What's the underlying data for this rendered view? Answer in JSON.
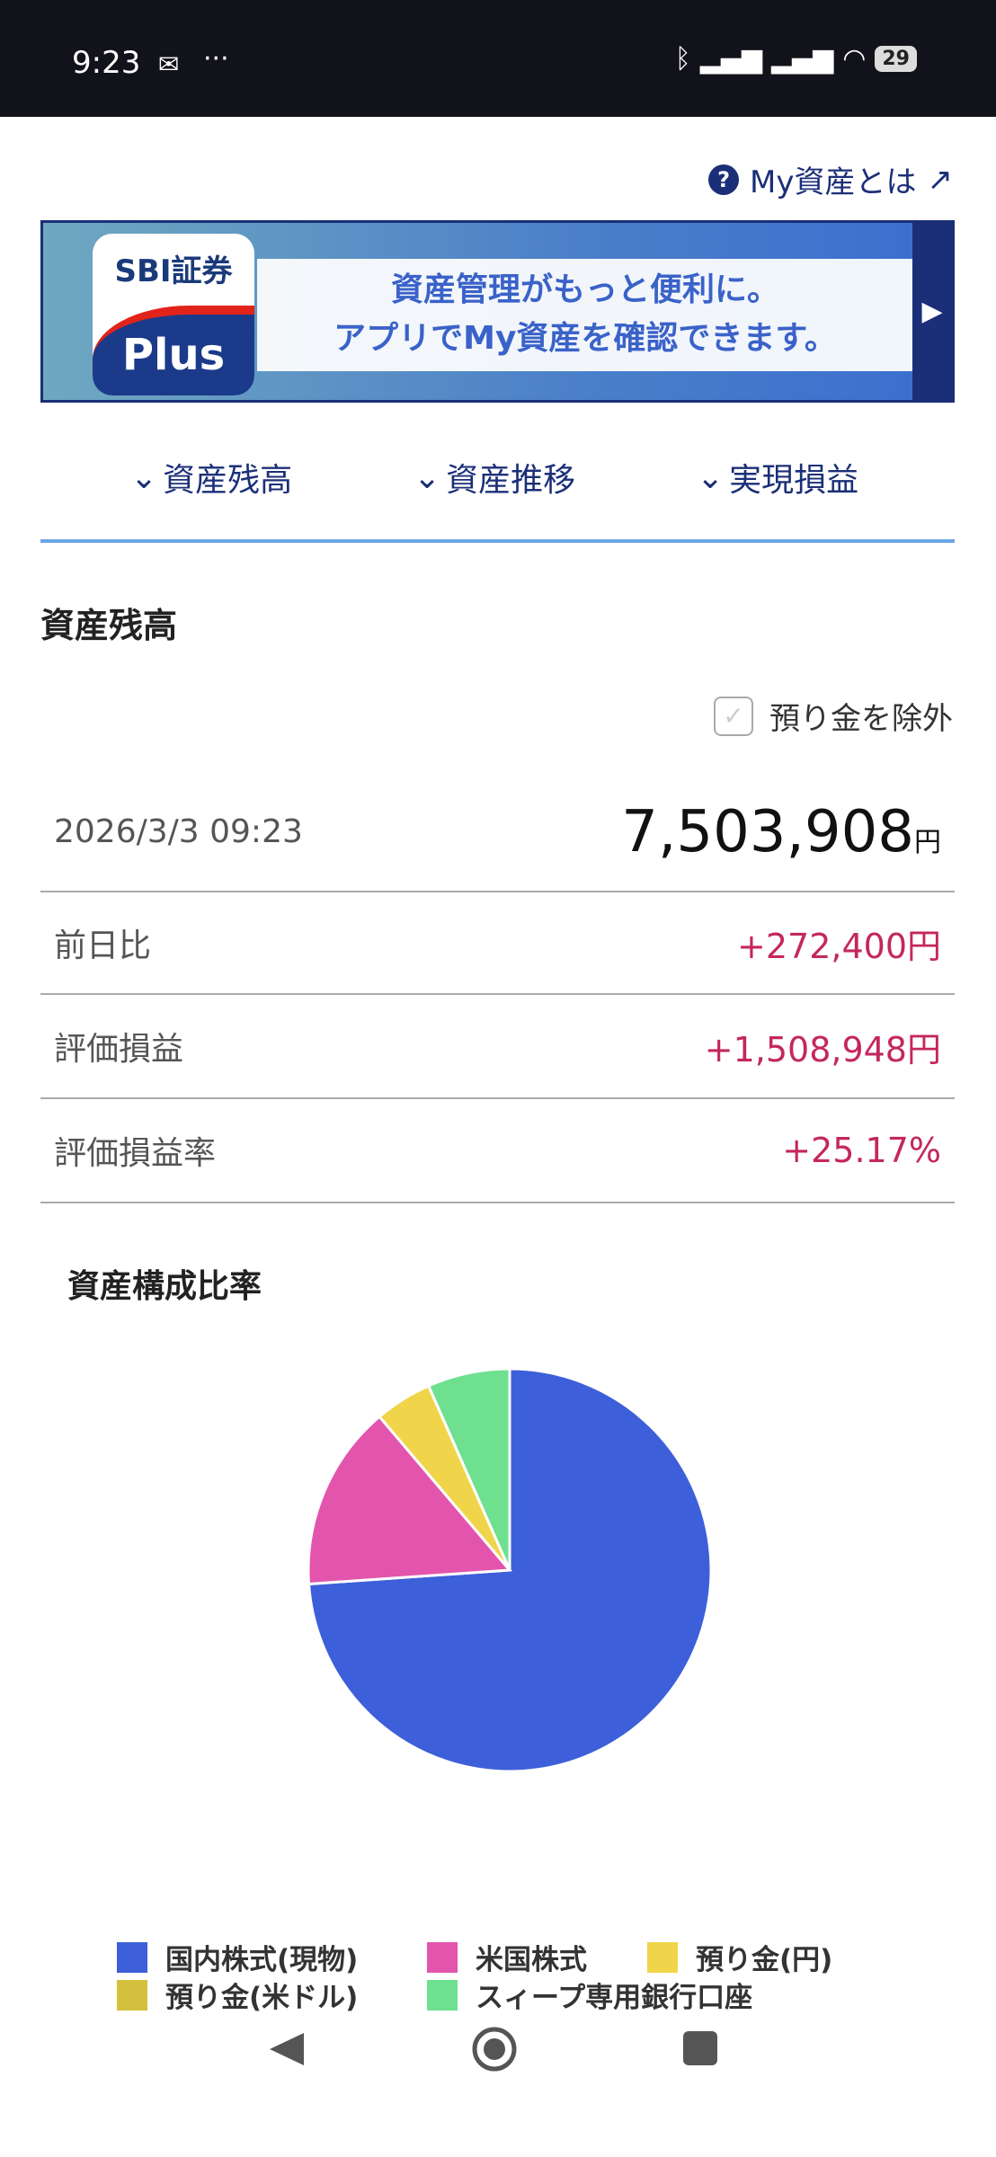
{
  "status_bar": {
    "time": "9:23",
    "battery": "29"
  },
  "help_link": {
    "label": "My資産とは"
  },
  "banner": {
    "logo_top": "SBI証券",
    "logo_bottom": "Plus",
    "line1": "資産管理がもっと便利に。",
    "line2": "アプリでMy資産を確認できます。"
  },
  "tabs": [
    {
      "label": "資産残高"
    },
    {
      "label": "資産推移"
    },
    {
      "label": "実現損益"
    }
  ],
  "balance": {
    "heading": "資産残高",
    "exclude_deposit_label": "預り金を除外",
    "exclude_deposit_checked": false,
    "datetime": "2026/3/3 09:23",
    "total": "7,503,908",
    "currency": "円",
    "rows": [
      {
        "label": "前日比",
        "value": "+272,400円"
      },
      {
        "label": "評価損益",
        "value": "+1,508,948円"
      },
      {
        "label": "評価損益率",
        "value": "+25.17%"
      }
    ]
  },
  "chart_data": {
    "type": "pie",
    "title": "資産構成比率",
    "legend_position": "bottom",
    "categories": [
      "国内株式(現物)",
      "米国株式",
      "預り金(円)",
      "預り金(米ドル)",
      "スィープ専用銀行口座"
    ],
    "values": [
      73.9,
      14.9,
      4.6,
      0.0,
      6.6
    ],
    "colors": [
      "#3d5fd9",
      "#e355ac",
      "#f0d54a",
      "#d4c03c",
      "#6ee090"
    ]
  }
}
